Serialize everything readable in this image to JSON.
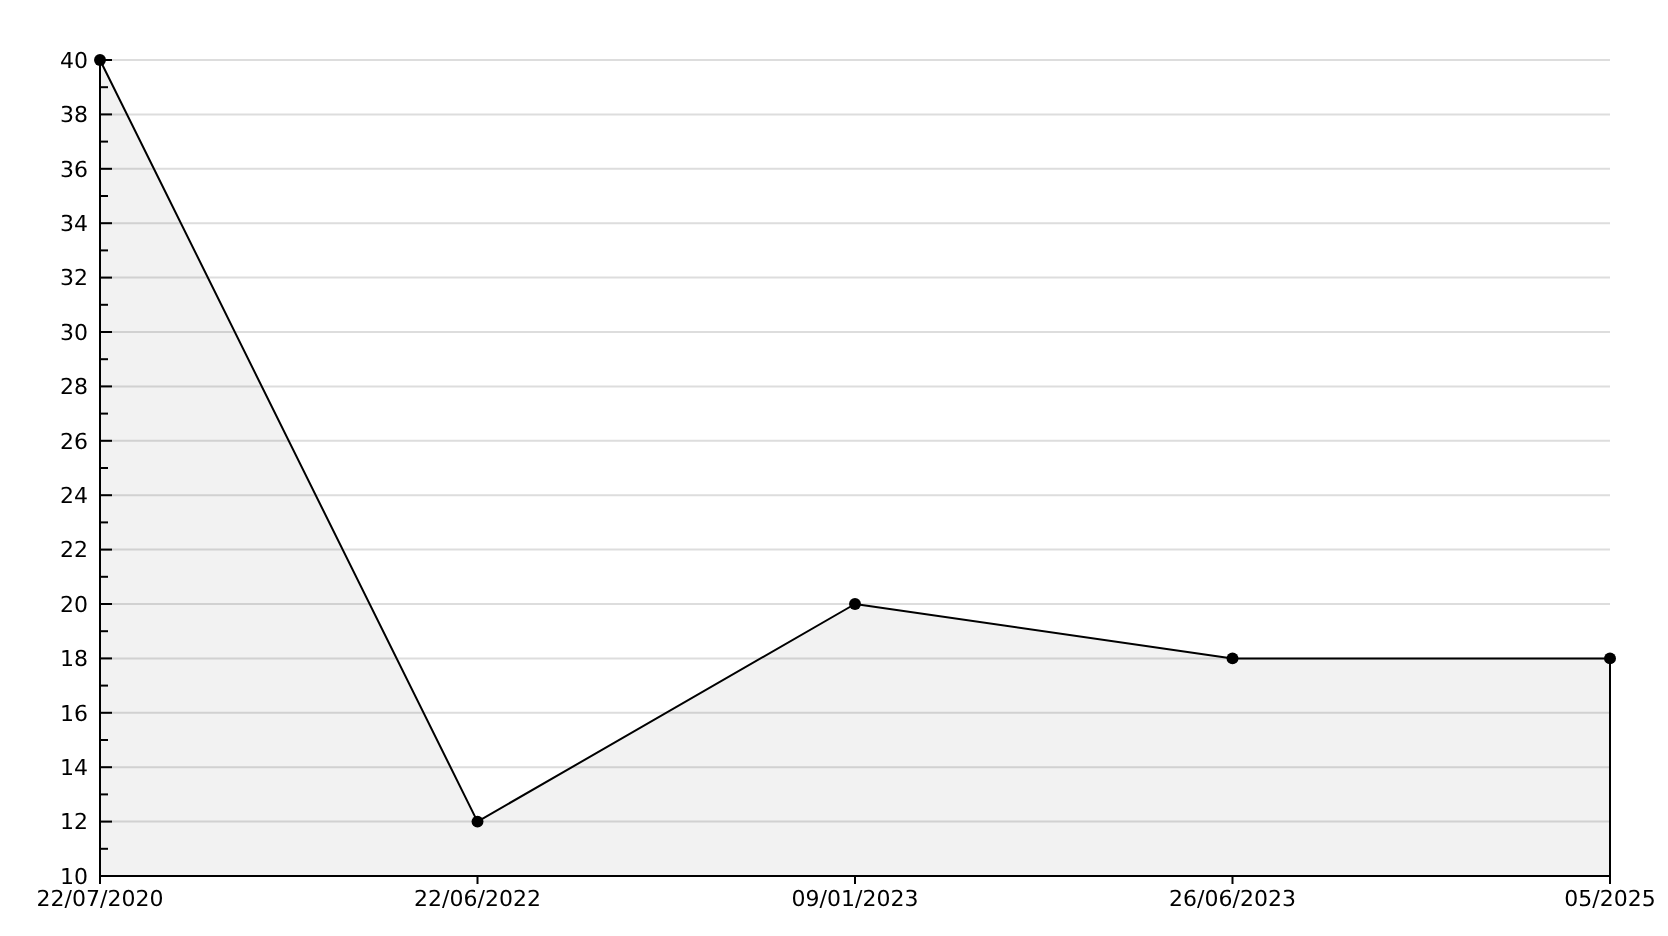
{
  "chart_data": {
    "type": "area",
    "categories": [
      "22/07/2020",
      "22/06/2022",
      "09/01/2023",
      "26/06/2023",
      "05/2025"
    ],
    "series": [
      {
        "color": "#000000",
        "values": [
          40,
          12,
          20,
          18,
          18
        ]
      }
    ],
    "ylim": [
      10,
      40
    ],
    "yticks": [
      10,
      {
        "value": 11,
        "label": null
      },
      12,
      {
        "value": 13,
        "label": null
      },
      14,
      {
        "value": 15,
        "label": null
      },
      16,
      {
        "value": 17,
        "label": null
      },
      18,
      {
        "value": 19,
        "label": null
      },
      20,
      {
        "value": 21,
        "label": null
      },
      22,
      {
        "value": 23,
        "label": null
      },
      24,
      {
        "value": 25,
        "label": null
      },
      26,
      {
        "value": 27,
        "label": null
      },
      28,
      {
        "value": 29,
        "label": null
      },
      30,
      {
        "value": 31,
        "label": null
      },
      32,
      {
        "value": 33,
        "label": null
      },
      34,
      {
        "value": 35,
        "label": null
      },
      36,
      {
        "value": 37,
        "label": null
      },
      38,
      {
        "value": 39,
        "label": null
      },
      40
    ],
    "grid": "y",
    "marker": "circle",
    "line_style": "solid"
  }
}
